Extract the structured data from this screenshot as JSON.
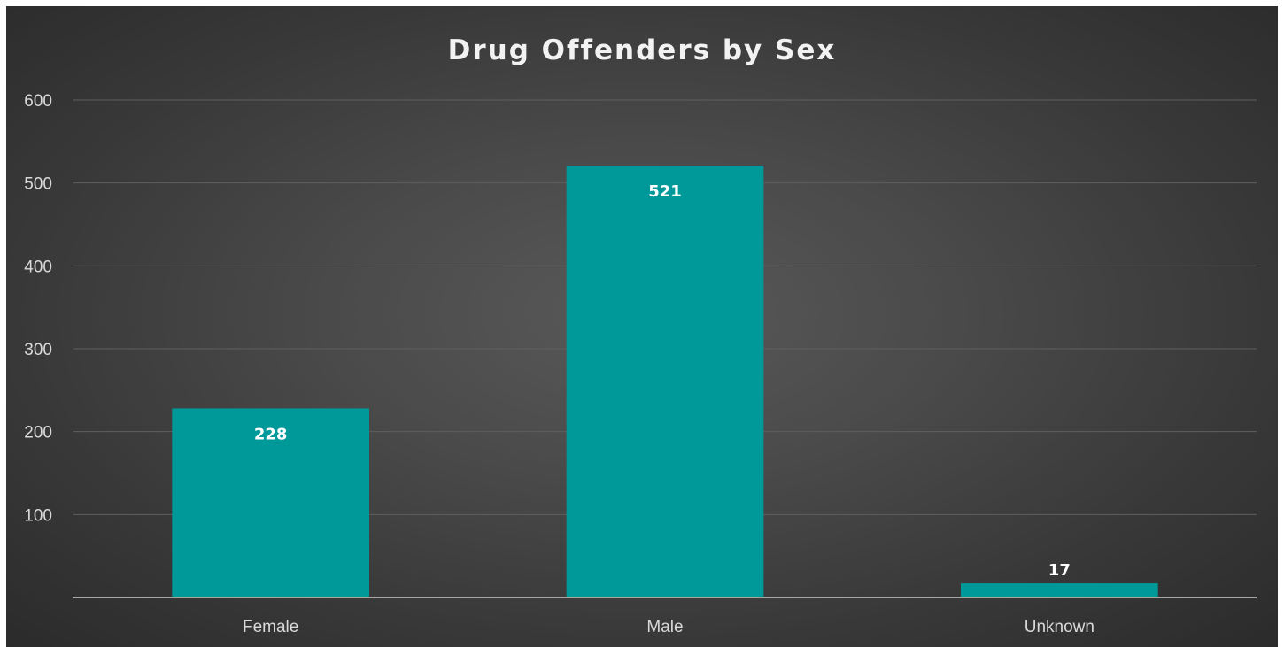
{
  "chart_data": {
    "type": "bar",
    "title": "Drug Offenders by Sex",
    "categories": [
      "Female",
      "Male",
      "Unknown"
    ],
    "values": [
      228,
      521,
      17
    ],
    "data_labels": [
      "228",
      "521",
      "17"
    ],
    "xlabel": "",
    "ylabel": "",
    "ylim": [
      0,
      600
    ],
    "yticks": [
      100,
      200,
      300,
      400,
      500,
      600
    ],
    "grid": true,
    "legend": "none",
    "bar_color": "#009999",
    "background_color": "#404040",
    "text_color": "#d9d9d9"
  }
}
